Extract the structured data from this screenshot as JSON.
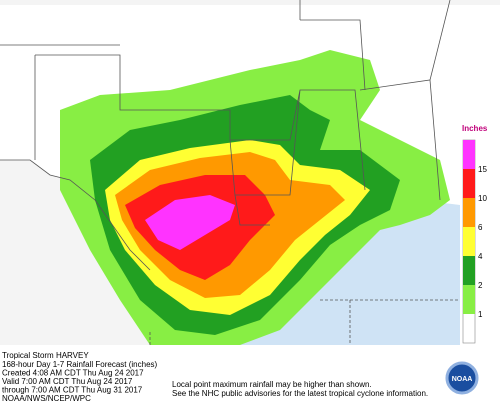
{
  "title": "Tropical Storm HARVEY",
  "info": [
    "168-hour Day 1-7 Rainfall Forecast (inches)",
    "Created 4:08 AM CDT Thu Aug 24 2017",
    "Valid 7:00 AM CDT Thu Aug 24 2017",
    "through 7:00 AM CDT Thu Aug 31 2017",
    "NOAA/NWS/NCEP/WPC"
  ],
  "notes": [
    "Local point maximum rainfall may be higher than shown.",
    "See the NHC public advisories for the latest tropical cyclone information."
  ],
  "legend": {
    "title": "Inches",
    "items": [
      {
        "label": "15",
        "color": "#ff33ff"
      },
      {
        "label": "10",
        "color": "#ff1a1a"
      },
      {
        "label": "6",
        "color": "#ff9900"
      },
      {
        "label": "4",
        "color": "#ffff33"
      },
      {
        "label": "2",
        "color": "#22a022"
      },
      {
        "label": "1",
        "color": "#88ee44"
      }
    ]
  },
  "logo": "NOAA"
}
